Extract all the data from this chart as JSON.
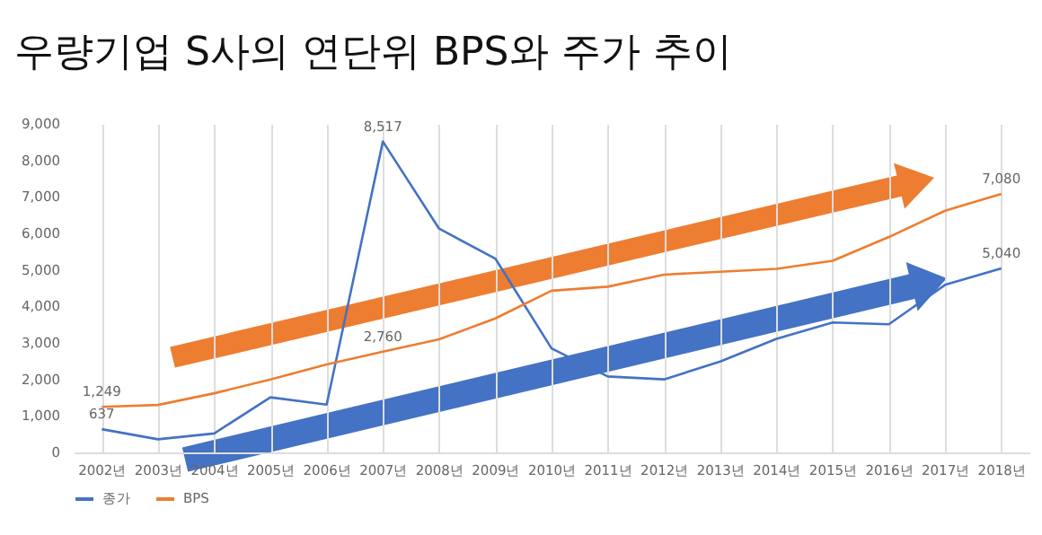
{
  "chart_data": {
    "type": "line",
    "title": "우량기업 S사의 연단위 BPS와 주가 추이",
    "categories": [
      "2002년",
      "2003년",
      "2004년",
      "2005년",
      "2006년",
      "2007년",
      "2008년",
      "2009년",
      "2010년",
      "2011년",
      "2012년",
      "2013년",
      "2014년",
      "2015년",
      "2016년",
      "2017년",
      "2018년"
    ],
    "series": [
      {
        "name": "종가",
        "color": "#4472c4",
        "values": [
          637,
          360,
          520,
          1510,
          1310,
          8517,
          6130,
          5310,
          2850,
          2080,
          2000,
          2490,
          3110,
          3560,
          3510,
          4590,
          5040
        ],
        "value_labels": [
          "637",
          null,
          null,
          null,
          null,
          "8,517",
          null,
          null,
          null,
          null,
          null,
          null,
          null,
          null,
          null,
          null,
          "5,040"
        ]
      },
      {
        "name": "BPS",
        "color": "#ed7d31",
        "values": [
          1249,
          1300,
          1620,
          2000,
          2410,
          2760,
          3100,
          3670,
          4430,
          4540,
          4870,
          4950,
          5030,
          5250,
          5900,
          6620,
          7080
        ],
        "value_labels": [
          "1,249",
          null,
          null,
          null,
          null,
          "2,760",
          null,
          null,
          null,
          null,
          null,
          null,
          null,
          null,
          null,
          null,
          "7,080"
        ]
      }
    ],
    "ylim": [
      0,
      9000
    ],
    "yticks": [
      0,
      {
        "value": 1000,
        "label": "1,000"
      },
      {
        "value": 2000,
        "label": "2,000"
      },
      {
        "value": 3000,
        "label": "3,000"
      },
      {
        "value": 4000,
        "label": "4,000"
      },
      {
        "value": 5000,
        "label": "5,000"
      },
      {
        "value": 6000,
        "label": "6,000"
      },
      {
        "value": 7000,
        "label": "7,000"
      },
      {
        "value": 8000,
        "label": "8,000"
      },
      {
        "value": 9000,
        "label": "9,000"
      }
    ],
    "grid": "x",
    "legend": "bottom",
    "line_style": "solid",
    "marker": "none"
  }
}
